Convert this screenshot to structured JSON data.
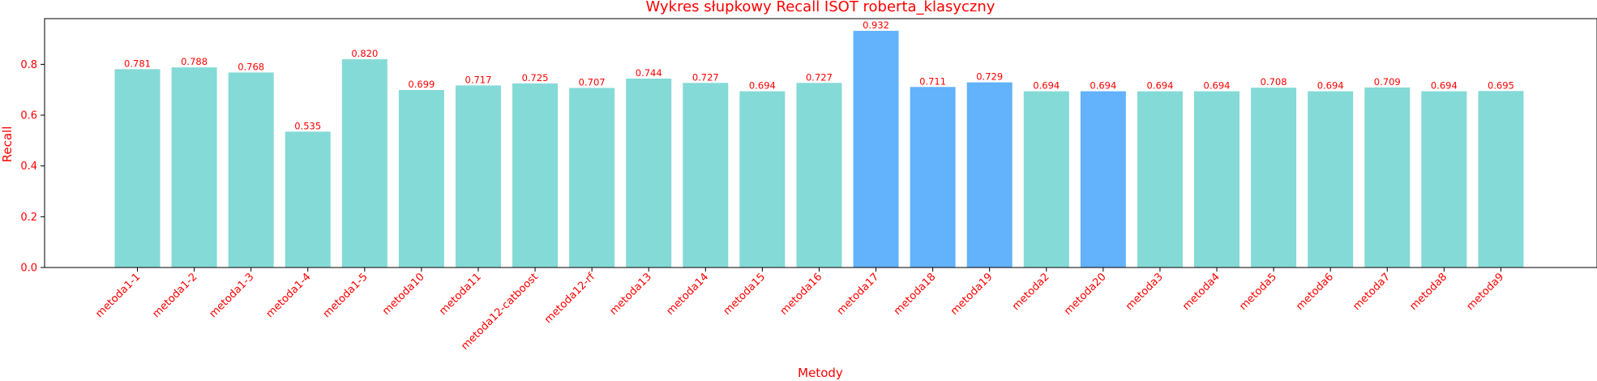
{
  "chart_data": {
    "type": "bar",
    "title": "Wykres słupkowy Recall ISOT roberta_klasyczny",
    "xlabel": "Metody",
    "ylabel": "Recall",
    "ylim": [
      0,
      0.98
    ],
    "yticks": [
      "0.0",
      "0.2",
      "0.4",
      "0.6",
      "0.8"
    ],
    "grid": false,
    "categories": [
      "metoda1-1",
      "metoda1-2",
      "metoda1-3",
      "metoda1-4",
      "metoda1-5",
      "metoda10",
      "metoda11",
      "metoda12-catboost",
      "metoda12-rf",
      "metoda13",
      "metoda14",
      "metoda15",
      "metoda16",
      "metoda17",
      "metoda18",
      "metoda19",
      "metoda2",
      "metoda20",
      "metoda3",
      "metoda4",
      "metoda5",
      "metoda6",
      "metoda7",
      "metoda8",
      "metoda9"
    ],
    "values": [
      0.781,
      0.788,
      0.768,
      0.535,
      0.82,
      0.699,
      0.717,
      0.725,
      0.707,
      0.744,
      0.727,
      0.694,
      0.727,
      0.932,
      0.711,
      0.729,
      0.694,
      0.694,
      0.694,
      0.694,
      0.708,
      0.694,
      0.709,
      0.694,
      0.695
    ],
    "value_labels": [
      "0.781",
      "0.788",
      "0.768",
      "0.535",
      "0.820",
      "0.699",
      "0.717",
      "0.725",
      "0.707",
      "0.744",
      "0.727",
      "0.694",
      "0.727",
      "0.932",
      "0.711",
      "0.729",
      "0.694",
      "0.694",
      "0.694",
      "0.694",
      "0.708",
      "0.694",
      "0.709",
      "0.694",
      "0.695"
    ],
    "highlighted": [
      "metoda17",
      "metoda18",
      "metoda19",
      "metoda20"
    ],
    "colors": {
      "bar": "#84dad6",
      "highlight": "#62b2fc",
      "text": "#ff0000",
      "axis": "#000000"
    }
  }
}
